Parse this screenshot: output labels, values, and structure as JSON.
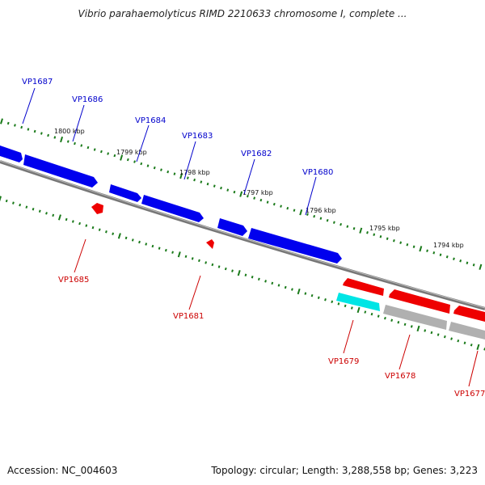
{
  "title": "Vibrio parahaemolyticus RIMD 2210633 chromosome I, complete ...",
  "footer": {
    "accession": "Accession: NC_004603",
    "stats": "Topology: circular; Length: 3,288,558 bp; Genes: 3,223"
  },
  "colors": {
    "forward_gene": "#0000ee",
    "reverse_gene": "#ee0000",
    "highlight_gene": "#00e5e5",
    "grey_gene": "#b0b0b0",
    "backbone": "#777777",
    "ticks": "#1a7a1a",
    "forward_label": "#0000cc",
    "reverse_label": "#cc0000"
  },
  "scale_labels": [
    "1800 kbp",
    "1799 kbp",
    "1798 kbp",
    "1797 kbp",
    "1796 kbp",
    "1795 kbp",
    "1794 kbp"
  ],
  "forward_labels": [
    "VP1687",
    "VP1686",
    "VP1684",
    "VP1683",
    "VP1682",
    "VP1680"
  ],
  "reverse_labels": [
    "VP1685",
    "VP1681",
    "VP1679",
    "VP1678",
    "VP1677"
  ]
}
